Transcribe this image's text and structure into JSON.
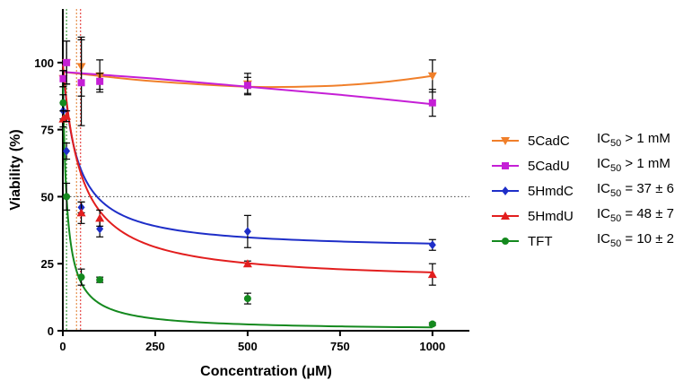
{
  "chart_data": {
    "type": "scatter",
    "xlabel": "Concentration (μM)",
    "ylabel": "Viability (%)",
    "xlim": [
      0,
      1100
    ],
    "ylim": [
      0,
      120
    ],
    "x_ticks": [
      "0",
      "250",
      "500",
      "750",
      "1000"
    ],
    "y_ticks": [
      "0",
      "25",
      "50",
      "75",
      "100"
    ],
    "x_tick_values": [
      0,
      250,
      500,
      750,
      1000
    ],
    "y_tick_values": [
      0,
      25,
      50,
      75,
      100
    ],
    "reference_line": {
      "y": 50,
      "style": "dotted"
    },
    "ic50_markers": [
      {
        "x": 10,
        "color": "#1a8a1a"
      },
      {
        "x": 37,
        "color": "#e07a2a"
      },
      {
        "x": 48,
        "color": "#e02020"
      }
    ],
    "legend_position": "right",
    "series": [
      {
        "name": "5CadC",
        "ic50_label": "IC",
        "ic50_sub": "50",
        "ic50_value": " > 1 mM",
        "color": "#f07f2a",
        "marker": "triangle-down",
        "x": [
          1,
          10,
          50,
          100,
          500,
          1000
        ],
        "y": [
          94,
          100,
          98.5,
          95,
          92,
          95
        ],
        "err": [
          3,
          8,
          11,
          6,
          4,
          6
        ],
        "fit_type": "poly",
        "fit_points": [
          [
            0,
            96.5
          ],
          [
            100,
            95
          ],
          [
            250,
            93
          ],
          [
            500,
            91
          ],
          [
            700,
            91.2
          ],
          [
            850,
            92.5
          ],
          [
            1000,
            95
          ]
        ]
      },
      {
        "name": "5CadU",
        "ic50_label": "IC",
        "ic50_sub": "50",
        "ic50_value": " > 1 mM",
        "color": "#c51fd6",
        "marker": "square",
        "x": [
          1,
          10,
          50,
          100,
          500,
          1000
        ],
        "y": [
          94,
          100,
          92.5,
          93,
          91.5,
          85
        ],
        "err": [
          3,
          8,
          16,
          3,
          3,
          5
        ],
        "fit_type": "poly",
        "fit_points": [
          [
            0,
            96.5
          ],
          [
            100,
            95.5
          ],
          [
            250,
            94
          ],
          [
            500,
            91
          ],
          [
            750,
            88
          ],
          [
            1000,
            84.5
          ]
        ]
      },
      {
        "name": "5HmdC",
        "ic50_label": "IC",
        "ic50_sub": "50",
        "ic50_value": " = 37 ± 6",
        "color": "#1e2ec8",
        "marker": "diamond",
        "x": [
          1,
          10,
          50,
          100,
          500,
          1000
        ],
        "y": [
          82,
          67,
          46,
          38,
          37,
          32
        ],
        "err": [
          3,
          3,
          2,
          3,
          6,
          2
        ],
        "fit_type": "hill",
        "top": 100,
        "bottom": 30,
        "ic50": 37,
        "hill": 1
      },
      {
        "name": "5HmdU",
        "ic50_label": "IC",
        "ic50_sub": "50",
        "ic50_value": " = 48 ± 7",
        "color": "#e21e1e",
        "marker": "triangle",
        "x": [
          1,
          10,
          50,
          100,
          500,
          1000
        ],
        "y": [
          79,
          80,
          44,
          42,
          25,
          21
        ],
        "err": [
          3,
          2,
          4,
          3,
          1,
          4
        ],
        "fit_type": "hill",
        "top": 100,
        "bottom": 18,
        "ic50": 48,
        "hill": 1
      },
      {
        "name": "TFT",
        "ic50_label": "IC",
        "ic50_sub": "50",
        "ic50_value": " = 10 ± 2",
        "color": "#14891e",
        "marker": "circle",
        "x": [
          1,
          10,
          50,
          100,
          500,
          1000
        ],
        "y": [
          85,
          50,
          20,
          19,
          12,
          2.5
        ],
        "err": [
          3,
          5,
          3,
          1,
          2,
          0.5
        ],
        "fit_type": "hill",
        "top": 100,
        "bottom": 0,
        "ic50": 10,
        "hill": 0.95
      }
    ]
  }
}
